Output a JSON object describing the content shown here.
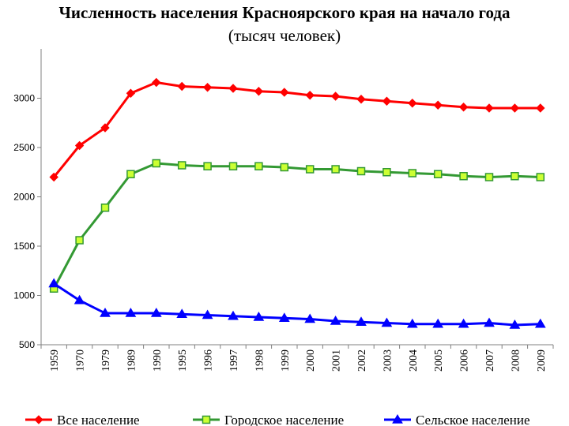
{
  "chart_data": {
    "type": "line",
    "title": "Численность населения Красноярского края на начало года",
    "subtitle": "(тысяч человек)",
    "xlabel": "",
    "ylabel": "",
    "categories": [
      "1959",
      "1970",
      "1979",
      "1989",
      "1990",
      "1995",
      "1996",
      "1997",
      "1998",
      "1999",
      "2000",
      "2001",
      "2002",
      "2003",
      "2004",
      "2005",
      "2006",
      "2007",
      "2008",
      "2009"
    ],
    "ylim": [
      500,
      3500
    ],
    "yticks": [
      500,
      1000,
      1500,
      2000,
      2500,
      3000
    ],
    "grid": false,
    "legend_position": "bottom",
    "series": [
      {
        "name": "Все население",
        "color": "#ff0000",
        "marker": "diamond",
        "values": [
          2200,
          2520,
          2700,
          3050,
          3160,
          3120,
          3110,
          3100,
          3070,
          3060,
          3030,
          3020,
          2990,
          2970,
          2950,
          2930,
          2910,
          2900,
          2900,
          2900
        ]
      },
      {
        "name": "Городское население",
        "color": "#339933",
        "marker": "square",
        "marker_fill": "#ccff33",
        "values": [
          1070,
          1560,
          1890,
          2230,
          2340,
          2320,
          2310,
          2310,
          2310,
          2300,
          2280,
          2280,
          2260,
          2250,
          2240,
          2230,
          2210,
          2200,
          2210,
          2200
        ]
      },
      {
        "name": "Сельское население",
        "color": "#0000ff",
        "marker": "triangle",
        "values": [
          1120,
          950,
          820,
          820,
          820,
          810,
          800,
          790,
          780,
          770,
          760,
          740,
          730,
          720,
          710,
          710,
          710,
          720,
          700,
          710
        ]
      }
    ]
  }
}
